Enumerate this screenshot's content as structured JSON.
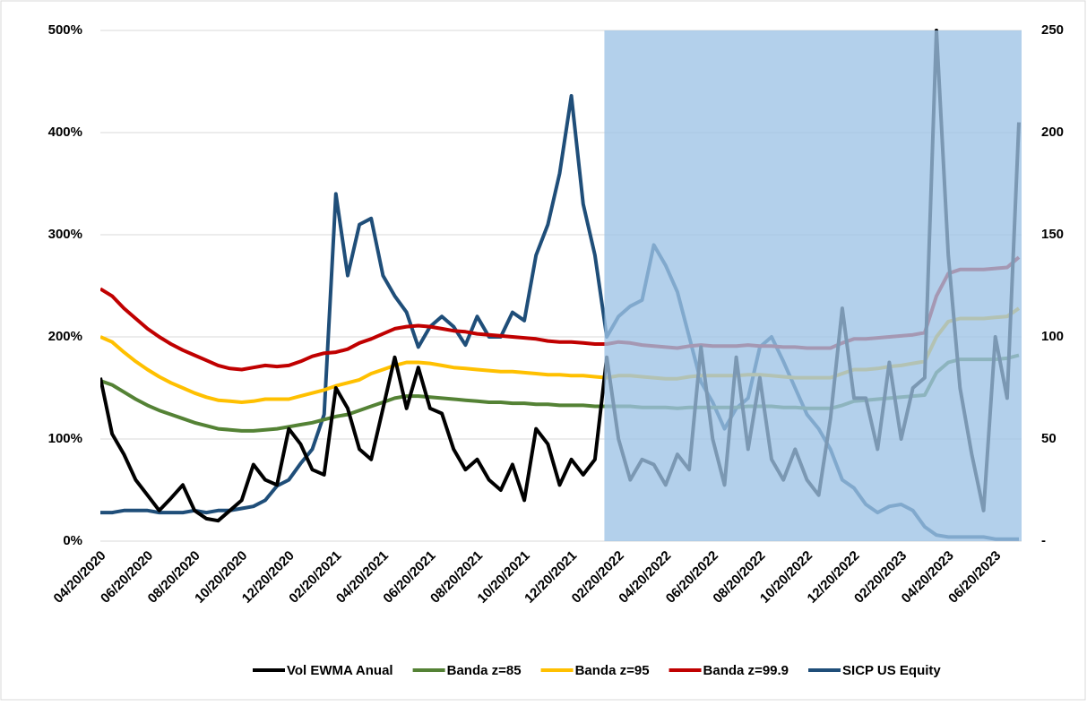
{
  "chart_data": {
    "type": "line",
    "categories": [
      "04/20/2020",
      null,
      null,
      null,
      "06/20/2020",
      null,
      null,
      null,
      "08/20/2020",
      null,
      null,
      null,
      "10/20/2020",
      null,
      null,
      null,
      "12/20/2020",
      null,
      null,
      null,
      "02/20/2021",
      null,
      null,
      null,
      "04/20/2021",
      null,
      null,
      null,
      "06/20/2021",
      null,
      null,
      null,
      "08/20/2021",
      null,
      null,
      null,
      "10/20/2021",
      null,
      null,
      null,
      "12/20/2021",
      null,
      null,
      null,
      "02/20/2022",
      null,
      null,
      null,
      "04/20/2022",
      null,
      null,
      null,
      "06/20/2022",
      null,
      null,
      null,
      "08/20/2022",
      null,
      null,
      null,
      "10/20/2022",
      null,
      null,
      null,
      "12/20/2022",
      null,
      null,
      null,
      "02/20/2023",
      null,
      null,
      null,
      "04/20/2023",
      null,
      null,
      null,
      "06/20/2023",
      null,
      null
    ],
    "series": [
      {
        "name": "Vol EWMA Anual",
        "color": "#000000",
        "values": [
          160,
          105,
          85,
          60,
          45,
          30,
          42,
          55,
          30,
          22,
          20,
          30,
          40,
          75,
          60,
          55,
          110,
          95,
          70,
          65,
          150,
          130,
          90,
          80,
          130,
          180,
          130,
          170,
          130,
          125,
          90,
          70,
          80,
          60,
          50,
          75,
          40,
          110,
          95,
          55,
          80,
          65,
          80,
          180,
          100,
          60,
          80,
          75,
          55,
          85,
          70,
          190,
          100,
          55,
          180,
          90,
          160,
          80,
          60,
          90,
          60,
          45,
          120,
          228,
          140,
          140,
          90,
          175,
          100,
          150,
          160,
          500,
          280,
          150,
          85,
          30,
          200,
          140,
          410
        ]
      },
      {
        "name": "Banda z=85",
        "color": "#548235",
        "values": [
          157,
          153,
          146,
          139,
          133,
          128,
          124,
          120,
          116,
          113,
          110,
          109,
          108,
          108,
          109,
          110,
          112,
          114,
          116,
          119,
          122,
          124,
          128,
          132,
          136,
          140,
          142,
          142,
          141,
          140,
          139,
          138,
          137,
          136,
          136,
          135,
          135,
          134,
          134,
          133,
          133,
          133,
          132,
          132,
          132,
          132,
          131,
          131,
          131,
          130,
          131,
          131,
          131,
          131,
          131,
          132,
          132,
          132,
          131,
          131,
          130,
          130,
          130,
          133,
          137,
          138,
          139,
          140,
          141,
          142,
          143,
          165,
          175,
          178,
          178,
          178,
          178,
          179,
          182
        ]
      },
      {
        "name": "Banda z=95",
        "color": "#ffc000",
        "values": [
          200,
          195,
          185,
          176,
          168,
          161,
          155,
          150,
          145,
          141,
          138,
          137,
          136,
          137,
          139,
          139,
          139,
          142,
          145,
          148,
          152,
          155,
          158,
          164,
          168,
          172,
          175,
          175,
          174,
          172,
          170,
          169,
          168,
          167,
          166,
          166,
          165,
          164,
          163,
          163,
          162,
          162,
          161,
          160,
          162,
          162,
          161,
          160,
          159,
          159,
          161,
          162,
          162,
          162,
          162,
          163,
          163,
          162,
          161,
          160,
          160,
          160,
          160,
          164,
          168,
          168,
          169,
          171,
          172,
          174,
          176,
          200,
          215,
          218,
          218,
          218,
          219,
          220,
          228
        ]
      },
      {
        "name": "Banda z=99.9",
        "color": "#c00000",
        "values": [
          247,
          240,
          228,
          218,
          208,
          200,
          193,
          187,
          182,
          177,
          172,
          169,
          168,
          170,
          172,
          171,
          172,
          176,
          181,
          184,
          185,
          188,
          194,
          198,
          203,
          208,
          210,
          211,
          210,
          208,
          206,
          205,
          203,
          202,
          201,
          200,
          199,
          198,
          196,
          195,
          195,
          194,
          193,
          193,
          195,
          194,
          192,
          191,
          190,
          189,
          191,
          192,
          191,
          191,
          191,
          192,
          191,
          191,
          190,
          190,
          189,
          189,
          189,
          194,
          198,
          198,
          199,
          200,
          201,
          202,
          204,
          240,
          262,
          266,
          266,
          266,
          267,
          268,
          278
        ]
      },
      {
        "name": "SICP US Equity",
        "color": "#1f4e79",
        "axis": "y2",
        "values": [
          14,
          14,
          15,
          15,
          15,
          14,
          14,
          14,
          15,
          14,
          15,
          15,
          16,
          17,
          20,
          27,
          30,
          38,
          45,
          62,
          170,
          130,
          155,
          158,
          130,
          120,
          112,
          95,
          105,
          110,
          105,
          96,
          110,
          100,
          100,
          112,
          108,
          140,
          155,
          180,
          218,
          165,
          140,
          100,
          110,
          115,
          118,
          145,
          135,
          122,
          100,
          78,
          68,
          55,
          65,
          70,
          95,
          100,
          88,
          75,
          62,
          55,
          45,
          30,
          26,
          18,
          14,
          17,
          18,
          15,
          7,
          3,
          2,
          2,
          2,
          2,
          1,
          1,
          1
        ]
      }
    ],
    "ylim": [
      0,
      500
    ],
    "yticks": [
      {
        "value": 0,
        "label": "0%"
      },
      {
        "value": 100,
        "label": "100%"
      },
      {
        "value": 200,
        "label": "200%"
      },
      {
        "value": 300,
        "label": "300%"
      },
      {
        "value": 400,
        "label": "400%"
      },
      {
        "value": 500,
        "label": "500%"
      }
    ],
    "y2lim": [
      0,
      250
    ],
    "y2ticks": [
      {
        "value": 0,
        "label": "-"
      },
      50,
      100,
      150,
      200,
      250
    ],
    "grid": true,
    "legend": "bottom"
  }
}
